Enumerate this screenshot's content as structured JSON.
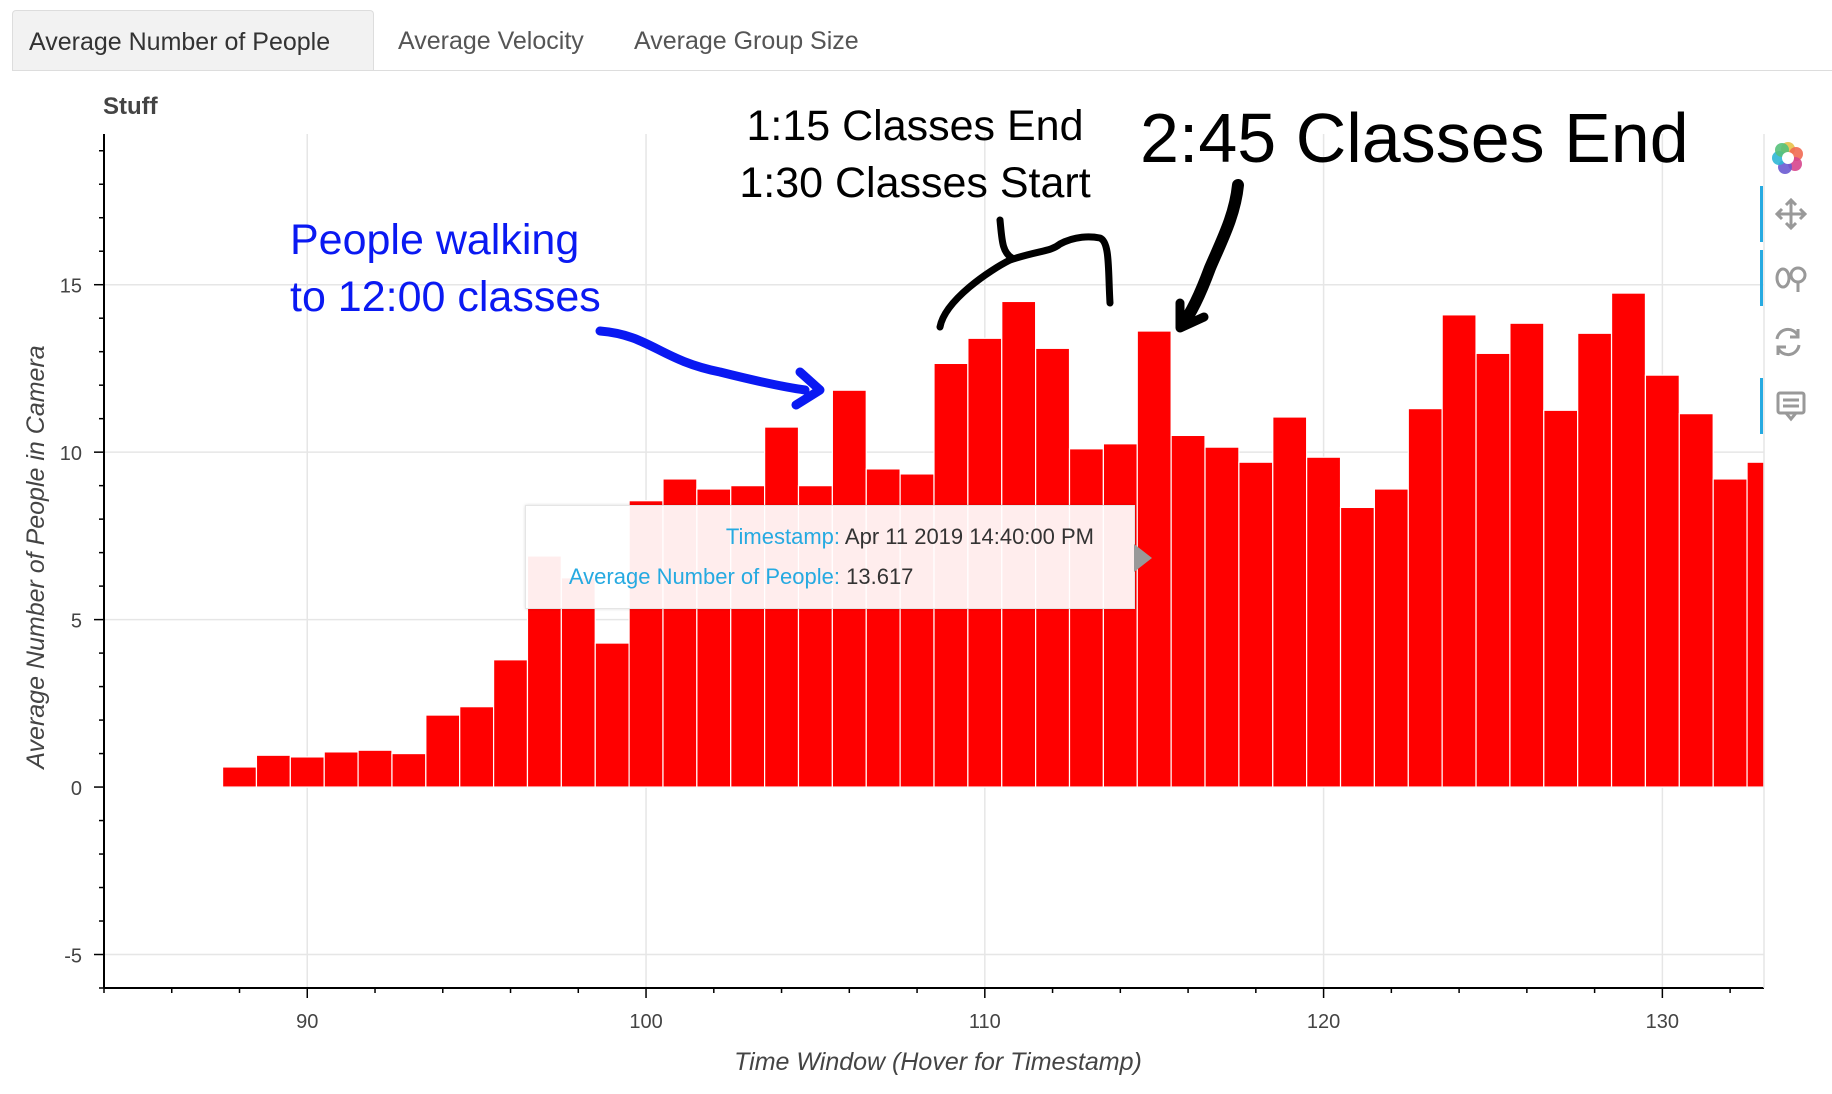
{
  "tabs": [
    {
      "label": "Average Number of People",
      "active": true
    },
    {
      "label": "Average Velocity",
      "active": false
    },
    {
      "label": "Average Group Size",
      "active": false
    }
  ],
  "chart_data": {
    "type": "bar",
    "title": "Stuff",
    "xlabel": "Time Window (Hover for Timestamp)",
    "ylabel": "Average Number of People in Camera",
    "xlim": [
      84,
      133
    ],
    "ylim": [
      -6,
      19.5
    ],
    "xticks": [
      90,
      100,
      110,
      120,
      130
    ],
    "yticks": [
      -5,
      0,
      5,
      10,
      15
    ],
    "bar_color": "#ff0000",
    "grid": true,
    "x": [
      84,
      85,
      86,
      87,
      88,
      89,
      90,
      91,
      92,
      93,
      94,
      95,
      96,
      97,
      98,
      99,
      100,
      101,
      102,
      103,
      104,
      105,
      106,
      107,
      108,
      109,
      110,
      111,
      112,
      113,
      114,
      115,
      116,
      117,
      118,
      119,
      120,
      121,
      122,
      123,
      124,
      125,
      126,
      127,
      128,
      129,
      130,
      131,
      132,
      133
    ],
    "values": [
      0.02,
      0.02,
      0.02,
      0.02,
      0.6,
      0.95,
      0.9,
      1.05,
      1.1,
      1.0,
      2.15,
      2.4,
      3.8,
      6.9,
      6.25,
      4.3,
      8.55,
      9.2,
      8.9,
      9.0,
      10.75,
      9.0,
      11.85,
      9.5,
      9.35,
      12.65,
      13.4,
      14.5,
      13.1,
      10.1,
      10.25,
      13.617,
      10.5,
      10.15,
      9.7,
      11.05,
      9.85,
      8.35,
      8.9,
      11.3,
      14.1,
      12.95,
      13.85,
      11.25,
      13.55,
      14.75,
      12.3,
      11.15,
      9.2,
      9.7
    ]
  },
  "tooltip": {
    "timestamp_label": "Timestamp:",
    "timestamp_value": "Apr 11 2019 14:40:00 PM",
    "people_label": "Average Number of People:",
    "people_value": "13.617"
  },
  "annotations": {
    "blue_line1": "People walking",
    "blue_line2": "to 12:00 classes",
    "black_line1": "1:15 Classes End",
    "black_line2": "1:30 Classes Start",
    "big_label": "2:45 Classes End",
    "blue_color": "#0a19f2",
    "black_color": "#000000"
  },
  "toolbar": [
    "bokeh-logo-icon",
    "pan-icon",
    "wheel-zoom-icon",
    "reset-icon",
    "hover-icon"
  ]
}
